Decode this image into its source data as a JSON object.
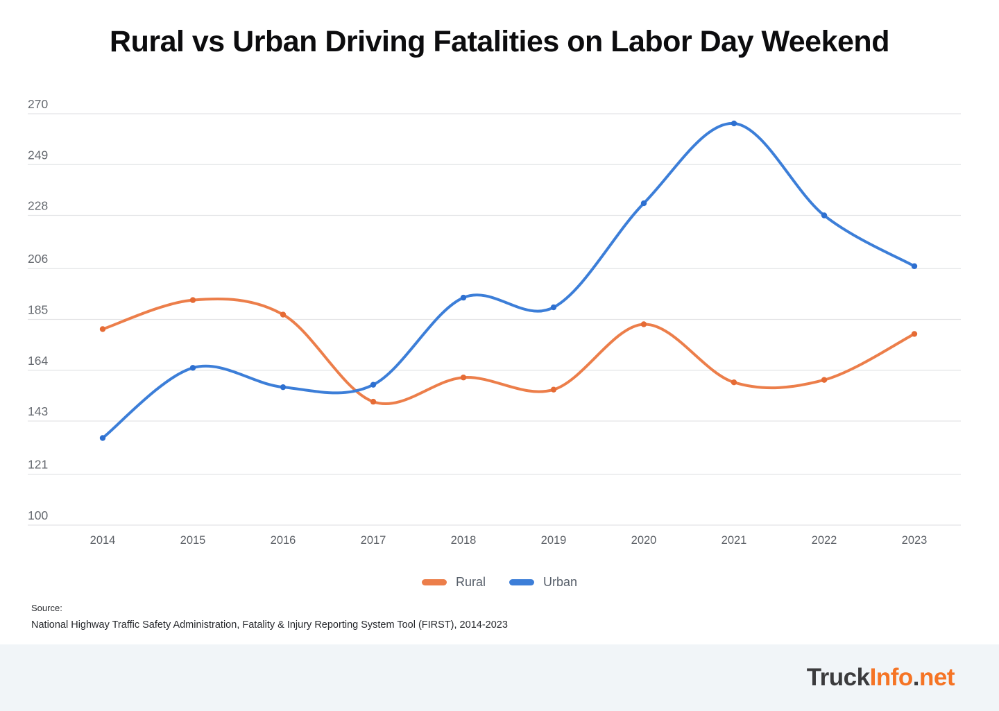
{
  "page": {
    "title": "Rural vs Urban Driving Fatalities on Labor Day Weekend",
    "source_label": "Source:",
    "source_text": "National Highway Traffic Safety Administration, Fatality & Injury Reporting System Tool (FIRST), 2014-2023"
  },
  "legend": {
    "items": [
      {
        "label": "Rural",
        "color": "#ec7e4a"
      },
      {
        "label": "Urban",
        "color": "#3c7ed8"
      }
    ]
  },
  "footer": {
    "logo_parts": [
      {
        "text": "Truck",
        "color_role": "dark"
      },
      {
        "text": "Info",
        "color_role": "orange"
      },
      {
        "text": ".",
        "color_role": "dark"
      },
      {
        "text": "net",
        "color_role": "orange"
      }
    ]
  },
  "chart_data": {
    "type": "line",
    "title": "Rural vs Urban Driving Fatalities on Labor Day Weekend",
    "x": [
      2014,
      2015,
      2016,
      2017,
      2018,
      2019,
      2020,
      2021,
      2022,
      2023
    ],
    "series": [
      {
        "name": "Rural",
        "color": "#ec7e4a",
        "marker_color": "#e56b35",
        "values": [
          181,
          193,
          187,
          151,
          161,
          156,
          183,
          159,
          160,
          179
        ]
      },
      {
        "name": "Urban",
        "color": "#3c7ed8",
        "marker_color": "#2d6fd0",
        "values": [
          136,
          165,
          157,
          158,
          194,
          190,
          233,
          266,
          228,
          207
        ]
      }
    ],
    "yticks": [
      100,
      121,
      143,
      164,
      185,
      206,
      228,
      249,
      270
    ],
    "ylim": [
      100,
      270
    ],
    "grid": true,
    "grid_color": "#e3e4e6",
    "tick_label_color": "#65696f",
    "legend_position": "bottom"
  }
}
